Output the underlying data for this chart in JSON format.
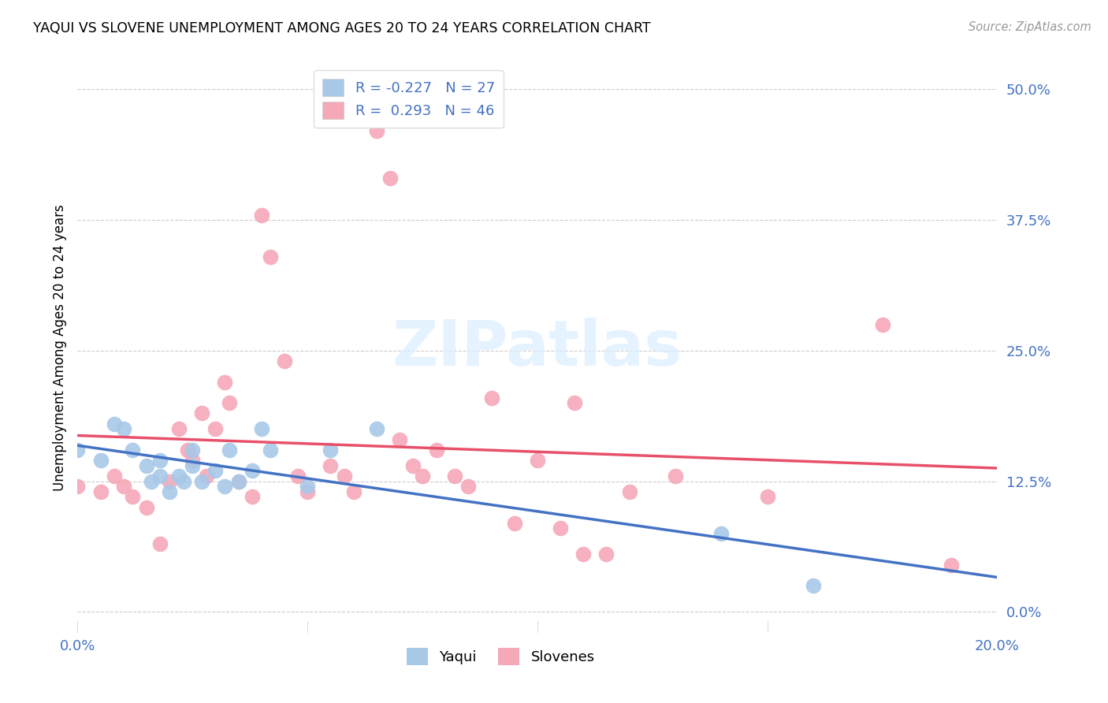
{
  "title": "YAQUI VS SLOVENE UNEMPLOYMENT AMONG AGES 20 TO 24 YEARS CORRELATION CHART",
  "source": "Source: ZipAtlas.com",
  "ylabel": "Unemployment Among Ages 20 to 24 years",
  "xlim": [
    0.0,
    0.2
  ],
  "ylim": [
    -0.02,
    0.525
  ],
  "yticks": [
    0.0,
    0.125,
    0.25,
    0.375,
    0.5
  ],
  "ytick_labels": [
    "0.0%",
    "12.5%",
    "25.0%",
    "37.5%",
    "50.0%"
  ],
  "xticks": [
    0.0,
    0.05,
    0.1,
    0.15,
    0.2
  ],
  "xtick_labels": [
    "0.0%",
    "",
    "",
    "",
    "20.0%"
  ],
  "yaqui_R": -0.227,
  "yaqui_N": 27,
  "slovene_R": 0.293,
  "slovene_N": 46,
  "yaqui_color": "#a8c8e8",
  "slovene_color": "#f5a8b8",
  "yaqui_line_color": "#4472c4",
  "slovene_line_color": "#e8506a",
  "legend_text_color": "#4472c4",
  "background_color": "#ffffff",
  "watermark": "ZIPatlas",
  "yaqui_x": [
    0.0,
    0.005,
    0.008,
    0.01,
    0.012,
    0.015,
    0.016,
    0.018,
    0.018,
    0.02,
    0.022,
    0.023,
    0.025,
    0.025,
    0.027,
    0.03,
    0.032,
    0.033,
    0.035,
    0.038,
    0.04,
    0.042,
    0.05,
    0.055,
    0.065,
    0.14,
    0.16
  ],
  "yaqui_y": [
    0.155,
    0.145,
    0.18,
    0.175,
    0.155,
    0.14,
    0.125,
    0.145,
    0.13,
    0.115,
    0.13,
    0.125,
    0.155,
    0.14,
    0.125,
    0.135,
    0.12,
    0.155,
    0.125,
    0.135,
    0.175,
    0.155,
    0.12,
    0.155,
    0.175,
    0.075,
    0.025
  ],
  "slovene_x": [
    0.0,
    0.005,
    0.008,
    0.01,
    0.012,
    0.015,
    0.018,
    0.02,
    0.022,
    0.024,
    0.025,
    0.027,
    0.028,
    0.03,
    0.032,
    0.033,
    0.035,
    0.038,
    0.04,
    0.042,
    0.045,
    0.048,
    0.05,
    0.055,
    0.058,
    0.06,
    0.065,
    0.068,
    0.07,
    0.073,
    0.075,
    0.078,
    0.082,
    0.085,
    0.09,
    0.095,
    0.1,
    0.105,
    0.108,
    0.11,
    0.115,
    0.12,
    0.13,
    0.15,
    0.175,
    0.19
  ],
  "slovene_y": [
    0.12,
    0.115,
    0.13,
    0.12,
    0.11,
    0.1,
    0.065,
    0.125,
    0.175,
    0.155,
    0.145,
    0.19,
    0.13,
    0.175,
    0.22,
    0.2,
    0.125,
    0.11,
    0.38,
    0.34,
    0.24,
    0.13,
    0.115,
    0.14,
    0.13,
    0.115,
    0.46,
    0.415,
    0.165,
    0.14,
    0.13,
    0.155,
    0.13,
    0.12,
    0.205,
    0.085,
    0.145,
    0.08,
    0.2,
    0.055,
    0.055,
    0.115,
    0.13,
    0.11,
    0.275,
    0.045
  ]
}
